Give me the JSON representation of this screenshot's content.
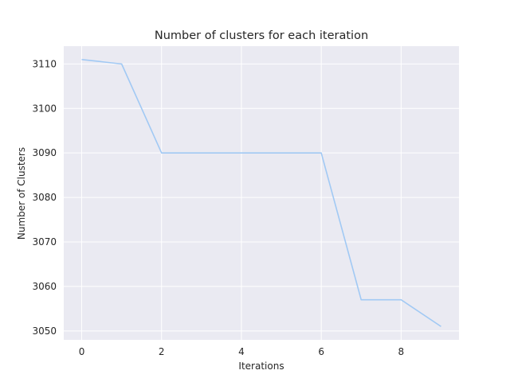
{
  "chart_data": {
    "type": "line",
    "title": "Number of clusters for each iteration",
    "xlabel": "Iterations",
    "ylabel": "Number of Clusters",
    "x": [
      0,
      1,
      2,
      3,
      4,
      5,
      6,
      7,
      8,
      9
    ],
    "series": [
      {
        "values": [
          3111,
          3110,
          3090,
          3090,
          3090,
          3090,
          3090,
          3057,
          3057,
          3051
        ],
        "color": "#a1c9f4"
      }
    ],
    "xticks": [
      0,
      2,
      4,
      6,
      8
    ],
    "yticks": [
      3050,
      3060,
      3070,
      3080,
      3090,
      3100,
      3110
    ],
    "xlim": [
      -0.45,
      9.45
    ],
    "ylim": [
      3048,
      3114
    ],
    "grid": true,
    "legend": "none",
    "colors": {
      "plot_background": "#eaeaf2",
      "grid": "#ffffff",
      "line": "#a1c9f4",
      "text": "#262626"
    }
  }
}
